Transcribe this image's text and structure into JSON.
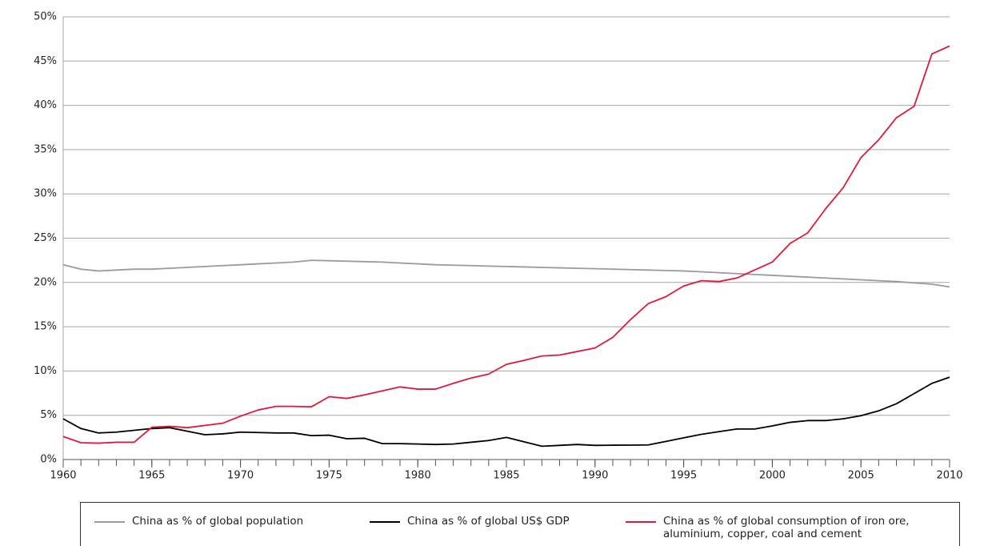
{
  "chart_data": {
    "type": "line",
    "x": [
      1960,
      1961,
      1962,
      1963,
      1964,
      1965,
      1966,
      1967,
      1968,
      1969,
      1970,
      1971,
      1972,
      1973,
      1974,
      1975,
      1976,
      1977,
      1978,
      1979,
      1980,
      1981,
      1982,
      1983,
      1984,
      1985,
      1986,
      1987,
      1988,
      1989,
      1990,
      1991,
      1992,
      1993,
      1994,
      1995,
      1996,
      1997,
      1998,
      1999,
      2000,
      2001,
      2002,
      2003,
      2004,
      2005,
      2006,
      2007,
      2008,
      2009,
      2010
    ],
    "series": [
      {
        "name": "China as % of global population",
        "color": "#9a9ba0",
        "values": [
          22,
          21.5,
          21.3,
          21.4,
          21.5,
          21.5,
          21.6,
          21.7,
          21.8,
          21.9,
          22.0,
          22.1,
          22.2,
          22.3,
          22.5,
          22.45,
          22.4,
          22.35,
          22.3,
          22.2,
          22.1,
          22.0,
          21.95,
          21.9,
          21.85,
          21.8,
          21.75,
          21.7,
          21.65,
          21.6,
          21.55,
          21.5,
          21.45,
          21.4,
          21.35,
          21.3,
          21.2,
          21.1,
          21.0,
          20.9,
          20.8,
          20.7,
          20.6,
          20.5,
          20.4,
          20.3,
          20.2,
          20.1,
          19.95,
          19.8,
          19.5
        ]
      },
      {
        "name": "China as % of global US$ GDP",
        "color": "#000000",
        "values": [
          4.6,
          3.5,
          3.0,
          3.1,
          3.3,
          3.5,
          3.6,
          3.2,
          2.8,
          2.9,
          3.1,
          3.05,
          3.0,
          3.0,
          2.7,
          2.75,
          2.35,
          2.4,
          1.8,
          1.8,
          1.75,
          1.7,
          1.75,
          1.95,
          2.15,
          2.5,
          2.0,
          1.5,
          1.6,
          1.7,
          1.6,
          1.62,
          1.63,
          1.65,
          2.05,
          2.45,
          2.85,
          3.15,
          3.45,
          3.45,
          3.8,
          4.2,
          4.4,
          4.4,
          4.6,
          4.95,
          5.5,
          6.3,
          7.45,
          8.6,
          9.3
        ]
      },
      {
        "name": "China as % of global consumption of iron ore, aluminium, copper, coal and cement",
        "color": "#e0193a",
        "values": [
          2.6,
          1.9,
          1.85,
          1.95,
          1.95,
          3.65,
          3.75,
          3.6,
          3.85,
          4.1,
          4.9,
          5.6,
          6.0,
          6.0,
          5.95,
          7.1,
          6.9,
          7.3,
          7.75,
          8.2,
          7.95,
          7.95,
          8.6,
          9.2,
          9.65,
          10.75,
          11.2,
          11.7,
          11.8,
          12.2,
          12.6,
          13.8,
          15.8,
          17.6,
          18.4,
          19.6,
          20.2,
          20.1,
          20.5,
          21.4,
          22.3,
          24.4,
          25.6,
          28.3,
          30.7,
          34.1,
          36.1,
          38.6,
          39.9,
          45.8,
          46.7
        ]
      }
    ],
    "xlim": [
      1960,
      2010
    ],
    "xticks": [
      1960,
      1965,
      1970,
      1975,
      1980,
      1985,
      1990,
      1995,
      2000,
      2005,
      2010
    ],
    "ylim": [
      0,
      50
    ],
    "yticks": [
      {
        "value": 0,
        "label": "0%"
      },
      {
        "value": 5,
        "label": "5%"
      },
      {
        "value": 10,
        "label": "10%"
      },
      {
        "value": 15,
        "label": "15%"
      },
      {
        "value": 20,
        "label": "20%"
      },
      {
        "value": 25,
        "label": "25%"
      },
      {
        "value": 30,
        "label": "30%"
      },
      {
        "value": 35,
        "label": "35%"
      },
      {
        "value": 40,
        "label": "40%"
      },
      {
        "value": 45,
        "label": "45%"
      },
      {
        "value": 50,
        "label": "50%"
      }
    ],
    "grid": true
  }
}
